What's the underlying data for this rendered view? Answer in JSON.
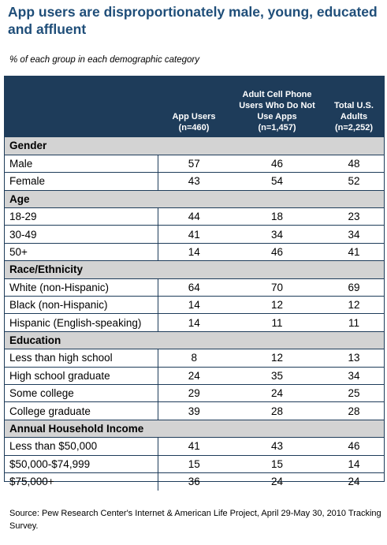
{
  "title": "App users are disproportionately male, young, educated and affluent",
  "subtitle": "% of each group in each demographic category",
  "colors": {
    "title": "#1f4e79",
    "header_bg": "#1e3c5a",
    "category_bg": "#d3d3d3"
  },
  "chart_data": {
    "type": "table",
    "columns": [
      "",
      "App Users (n=460)",
      "Adult Cell Phone Users Who Do Not Use Apps (n=1,457)",
      "Total U.S. Adults (n=2,252)"
    ],
    "groups": [
      {
        "category": "Gender",
        "rows": [
          {
            "label": "Male",
            "values": [
              "57",
              "46",
              "48"
            ]
          },
          {
            "label": "Female",
            "values": [
              "43",
              "54",
              "52"
            ]
          }
        ]
      },
      {
        "category": "Age",
        "rows": [
          {
            "label": "18-29",
            "values": [
              "44",
              "18",
              "23"
            ]
          },
          {
            "label": "30-49",
            "values": [
              "41",
              "34",
              "34"
            ]
          },
          {
            "label": "50+",
            "values": [
              "14",
              "46",
              "41"
            ]
          }
        ]
      },
      {
        "category": "Race/Ethnicity",
        "rows": [
          {
            "label": "White (non-Hispanic)",
            "values": [
              "64",
              "70",
              "69"
            ]
          },
          {
            "label": "Black (non-Hispanic)",
            "values": [
              "14",
              "12",
              "12"
            ]
          },
          {
            "label": "Hispanic (English-speaking)",
            "values": [
              "14",
              "11",
              "11"
            ]
          }
        ]
      },
      {
        "category": "Education",
        "rows": [
          {
            "label": "Less than high school",
            "values": [
              "8",
              "12",
              "13"
            ]
          },
          {
            "label": "High school graduate",
            "values": [
              "24",
              "35",
              "34"
            ]
          },
          {
            "label": "Some college",
            "values": [
              "29",
              "24",
              "25"
            ]
          },
          {
            "label": "College graduate",
            "values": [
              "39",
              "28",
              "28"
            ]
          }
        ]
      },
      {
        "category": "Annual Household Income",
        "rows": [
          {
            "label": "Less than $50,000",
            "values": [
              "41",
              "43",
              "46"
            ]
          },
          {
            "label": "$50,000-$74,999",
            "values": [
              "15",
              "15",
              "14"
            ]
          },
          {
            "label": "$75,000+",
            "values": [
              "36",
              "24",
              "24"
            ]
          }
        ]
      }
    ]
  },
  "header": {
    "col1": [
      "App Users",
      "(n=460)"
    ],
    "col2": [
      "Adult Cell Phone",
      "Users Who Do Not",
      "Use Apps",
      "(n=1,457)"
    ],
    "col3": [
      "Total U.S.",
      "Adults",
      "(n=2,252)"
    ]
  },
  "source": "Source:  Pew Research Center's Internet & American Life Project, April 29-May 30, 2010 Tracking Survey."
}
